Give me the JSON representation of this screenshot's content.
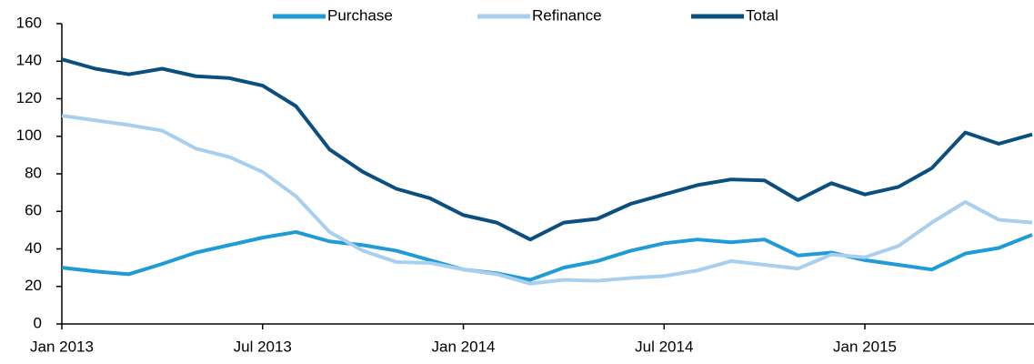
{
  "chart_data": {
    "type": "line",
    "categories": [
      "Jan 2013",
      null,
      null,
      null,
      null,
      null,
      "Jul 2013",
      null,
      null,
      null,
      null,
      null,
      "Jan 2014",
      null,
      null,
      null,
      null,
      null,
      "Jul 2014",
      null,
      null,
      null,
      null,
      null,
      "Jan 2015",
      null,
      null,
      null,
      null,
      null
    ],
    "series": [
      {
        "name": "Purchase",
        "color": "#1f9bd7",
        "values": [
          30,
          28,
          26.5,
          32,
          38,
          42,
          46,
          49,
          44,
          42,
          39,
          34,
          29,
          27,
          23.5,
          30,
          33.5,
          39,
          43,
          45,
          43.5,
          45,
          36.5,
          38,
          34,
          31.5,
          29,
          37.5,
          40.5,
          47.5
        ]
      },
      {
        "name": "Refinance",
        "color": "#a9cfee",
        "values": [
          111,
          108.5,
          106,
          103,
          93.5,
          89,
          81,
          68,
          49,
          39,
          33,
          32.5,
          29,
          26.5,
          21.5,
          23.5,
          23,
          24.5,
          25.5,
          28.5,
          33.5,
          31.5,
          29.5,
          37,
          35.5,
          41.5,
          54,
          65,
          55.5,
          54
        ]
      },
      {
        "name": "Total",
        "color": "#0a4f7e",
        "values": [
          141,
          136,
          133,
          136,
          132,
          131,
          127,
          116,
          93,
          81,
          72,
          67,
          58,
          54,
          45,
          54,
          56,
          64,
          69,
          74,
          77,
          76.5,
          66,
          75,
          69,
          73,
          83,
          102,
          96,
          101
        ]
      }
    ],
    "ylim": [
      0,
      160
    ],
    "yticks": [
      0,
      20,
      40,
      60,
      80,
      100,
      120,
      140,
      160
    ],
    "legend": "top",
    "grid": false
  }
}
